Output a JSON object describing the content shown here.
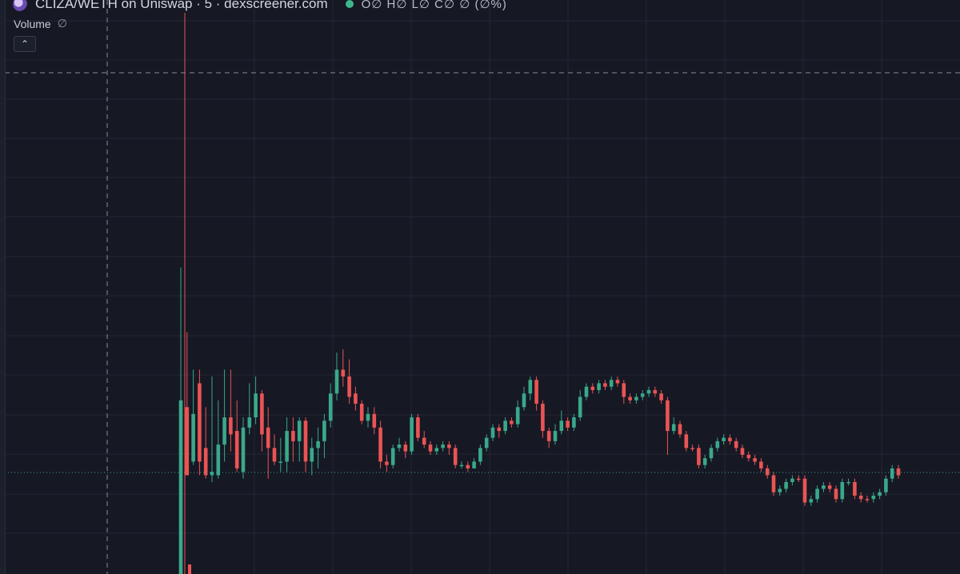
{
  "header": {
    "title": "CLIZA/WETH on Uniswap · 5 · dexscreener.com",
    "ohlc": "O∅ H∅ L∅ C∅ ∅ (∅%)"
  },
  "volume": {
    "label": "Volume",
    "value": "∅"
  },
  "icons": {
    "logo": "token-logo-icon",
    "live": "live-status-dot-icon",
    "collapse": "chevron-up-icon"
  },
  "colors": {
    "up": "#3aa889",
    "down": "#ea5454",
    "background": "#161824",
    "grid": "#242735",
    "crosshair": "#8a8e99"
  },
  "chart_data": {
    "type": "candlestick",
    "ylim": [
      0,
      100
    ],
    "candles": [
      [
        0,
        51,
        90,
        0,
        "u"
      ],
      [
        49,
        29,
        71,
        30,
        "d"
      ],
      [
        47,
        33,
        60,
        32,
        "u"
      ],
      [
        56,
        33,
        60,
        29,
        "d"
      ],
      [
        37,
        29,
        49,
        28,
        "d"
      ],
      [
        30,
        29,
        58,
        27,
        "u"
      ],
      [
        29,
        38,
        51,
        28,
        "u"
      ],
      [
        38,
        46,
        60,
        33,
        "u"
      ],
      [
        46,
        41,
        60,
        36,
        "d"
      ],
      [
        42,
        31,
        51,
        30,
        "d"
      ],
      [
        30,
        43,
        46,
        28,
        "u"
      ],
      [
        43,
        46,
        56,
        41,
        "u"
      ],
      [
        46,
        53,
        58,
        44,
        "u"
      ],
      [
        53,
        41,
        54,
        36,
        "d"
      ],
      [
        43,
        37,
        49,
        28,
        "d"
      ],
      [
        37,
        33,
        41,
        32,
        "d"
      ],
      [
        33,
        33,
        40,
        30,
        "u"
      ],
      [
        33,
        42,
        46,
        30,
        "u"
      ],
      [
        42,
        39,
        46,
        33,
        "d"
      ],
      [
        39,
        45,
        46,
        33,
        "u"
      ],
      [
        45,
        33,
        46,
        30,
        "d"
      ],
      [
        33,
        37,
        40,
        29,
        "u"
      ],
      [
        37,
        39,
        43,
        31,
        "u"
      ],
      [
        39,
        45,
        47,
        34,
        "u"
      ],
      [
        45,
        53,
        56,
        43,
        "u"
      ],
      [
        53,
        60,
        65,
        51,
        "u"
      ],
      [
        60,
        58,
        66,
        55,
        "d"
      ],
      [
        58,
        52,
        63,
        50,
        "d"
      ],
      [
        53,
        50,
        55,
        48,
        "d"
      ],
      [
        50,
        45,
        51,
        44,
        "d"
      ],
      [
        45,
        47,
        49,
        43,
        "u"
      ],
      [
        47,
        43,
        49,
        41,
        "d"
      ],
      [
        43,
        33,
        45,
        31,
        "d"
      ],
      [
        33,
        32,
        35,
        30,
        "d"
      ],
      [
        32,
        37,
        38,
        31,
        "u"
      ],
      [
        37,
        38,
        40,
        36,
        "u"
      ],
      [
        38,
        36,
        39,
        34,
        "d"
      ],
      [
        36,
        46,
        47,
        35,
        "u"
      ],
      [
        46,
        40,
        47,
        39,
        "d"
      ],
      [
        40,
        38,
        42,
        37,
        "d"
      ],
      [
        38,
        36,
        39,
        35,
        "d"
      ],
      [
        36,
        37,
        38,
        35,
        "u"
      ],
      [
        37,
        38,
        39,
        36,
        "u"
      ],
      [
        38,
        37,
        39,
        35,
        "d"
      ],
      [
        37,
        32,
        38,
        31,
        "d"
      ],
      [
        32,
        32,
        33,
        31,
        "u"
      ],
      [
        32,
        31,
        33,
        30,
        "d"
      ],
      [
        31,
        33,
        34,
        31,
        "u"
      ],
      [
        33,
        37,
        38,
        32,
        "u"
      ],
      [
        37,
        40,
        41,
        36,
        "u"
      ],
      [
        40,
        43,
        44,
        39,
        "u"
      ],
      [
        43,
        42,
        44,
        40,
        "d"
      ],
      [
        42,
        45,
        46,
        41,
        "u"
      ],
      [
        45,
        44,
        46,
        43,
        "d"
      ],
      [
        44,
        49,
        51,
        43,
        "u"
      ],
      [
        49,
        53,
        55,
        48,
        "u"
      ],
      [
        53,
        57,
        58,
        51,
        "u"
      ],
      [
        57,
        50,
        58,
        48,
        "d"
      ],
      [
        50,
        42,
        51,
        40,
        "d"
      ],
      [
        42,
        39,
        43,
        37,
        "d"
      ],
      [
        39,
        42,
        44,
        38,
        "u"
      ],
      [
        42,
        45,
        48,
        41,
        "u"
      ],
      [
        45,
        43,
        46,
        42,
        "d"
      ],
      [
        43,
        46,
        47,
        42,
        "u"
      ],
      [
        46,
        52,
        54,
        45,
        "u"
      ],
      [
        52,
        55,
        56,
        51,
        "u"
      ],
      [
        55,
        54,
        56,
        53,
        "d"
      ],
      [
        54,
        56,
        57,
        53,
        "u"
      ],
      [
        56,
        55,
        57,
        54,
        "d"
      ],
      [
        55,
        57,
        58,
        54,
        "u"
      ],
      [
        57,
        56,
        58,
        55,
        "d"
      ],
      [
        56,
        52,
        57,
        50,
        "d"
      ],
      [
        52,
        51,
        53,
        50,
        "d"
      ],
      [
        51,
        52,
        53,
        50,
        "u"
      ],
      [
        52,
        53,
        54,
        51,
        "u"
      ],
      [
        53,
        54,
        55,
        52,
        "u"
      ],
      [
        54,
        53,
        55,
        52,
        "d"
      ],
      [
        53,
        51,
        54,
        50,
        "d"
      ],
      [
        51,
        42,
        52,
        35,
        "d"
      ],
      [
        42,
        44,
        46,
        41,
        "u"
      ],
      [
        44,
        41,
        45,
        40,
        "d"
      ],
      [
        41,
        37,
        42,
        36,
        "d"
      ],
      [
        37,
        37,
        38,
        36,
        "d"
      ],
      [
        37,
        32,
        38,
        31,
        "d"
      ],
      [
        32,
        34,
        35,
        31,
        "u"
      ],
      [
        34,
        37,
        38,
        33,
        "u"
      ],
      [
        37,
        39,
        40,
        36,
        "u"
      ],
      [
        39,
        40,
        41,
        38,
        "u"
      ],
      [
        40,
        39,
        41,
        38,
        "d"
      ],
      [
        39,
        37,
        40,
        36,
        "d"
      ],
      [
        37,
        35,
        38,
        34,
        "d"
      ],
      [
        35,
        34,
        36,
        33,
        "d"
      ],
      [
        34,
        33,
        35,
        32,
        "d"
      ],
      [
        33,
        31,
        34,
        30,
        "d"
      ],
      [
        31,
        29,
        32,
        28,
        "d"
      ],
      [
        29,
        24,
        30,
        23,
        "d"
      ],
      [
        24,
        25,
        26,
        23,
        "u"
      ],
      [
        25,
        27,
        28,
        24,
        "u"
      ],
      [
        27,
        28,
        29,
        26,
        "u"
      ],
      [
        28,
        28,
        29,
        27,
        "d"
      ],
      [
        28,
        21,
        29,
        20,
        "d"
      ],
      [
        21,
        22,
        23,
        20,
        "u"
      ],
      [
        22,
        25,
        26,
        21,
        "u"
      ],
      [
        25,
        26,
        27,
        24,
        "u"
      ],
      [
        26,
        25,
        27,
        24,
        "d"
      ],
      [
        25,
        22,
        26,
        21,
        "d"
      ],
      [
        22,
        27,
        28,
        21,
        "u"
      ],
      [
        27,
        27,
        28,
        26,
        "u"
      ],
      [
        27,
        23,
        28,
        22,
        "d"
      ],
      [
        23,
        22,
        24,
        21,
        "d"
      ],
      [
        22,
        22,
        23,
        21,
        "d"
      ],
      [
        22,
        23,
        24,
        21,
        "u"
      ],
      [
        23,
        24,
        25,
        22,
        "u"
      ],
      [
        24,
        28,
        29,
        23,
        "u"
      ],
      [
        28,
        31,
        32,
        27,
        "u"
      ],
      [
        31,
        29,
        32,
        28,
        "d"
      ]
    ]
  }
}
